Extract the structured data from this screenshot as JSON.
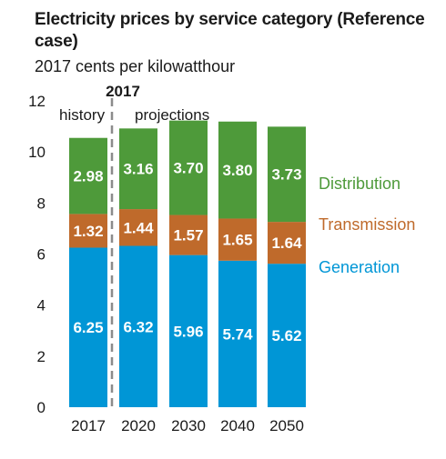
{
  "chart_data": {
    "type": "bar",
    "stacked": true,
    "title": "Electricity prices by service category (Reference case)",
    "subtitle": "2017 cents per kilowatthour",
    "categories": [
      "2017",
      "2020",
      "2030",
      "2040",
      "2050"
    ],
    "series": [
      {
        "name": "Generation",
        "color": "#0096d6",
        "values": [
          6.25,
          6.32,
          5.96,
          5.74,
          5.62
        ],
        "labels": [
          "6.25",
          "6.32",
          "5.96",
          "5.74",
          "5.62"
        ]
      },
      {
        "name": "Transmission",
        "color": "#bf6a2b",
        "values": [
          1.32,
          1.44,
          1.57,
          1.65,
          1.64
        ],
        "labels": [
          "1.32",
          "1.44",
          "1.57",
          "1.65",
          "1.64"
        ]
      },
      {
        "name": "Distribution",
        "color": "#4e9a3a",
        "values": [
          2.98,
          3.16,
          3.7,
          3.8,
          3.73
        ],
        "labels": [
          "2.98",
          "3.16",
          "3.70",
          "3.80",
          "3.73"
        ]
      }
    ],
    "yticks": [
      "0",
      "2",
      "4",
      "6",
      "8",
      "10",
      "12"
    ],
    "ylim": [
      0,
      12
    ],
    "grid": false,
    "legend_placement": "right",
    "annotations": {
      "divider_year": "2017",
      "history": "history",
      "projections": "projections"
    }
  }
}
